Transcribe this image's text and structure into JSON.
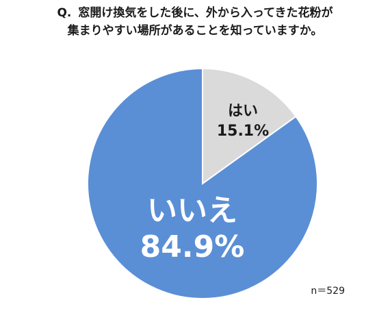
{
  "question": {
    "prefix": "Q.",
    "line1": "窓開け換気をした後に、外から入ってきた花粉が",
    "line2": "集まりやすい場所があることを知っていますか。"
  },
  "sample_size": "n＝529",
  "colors": {
    "yes": "#dadada",
    "no": "#5a8fd6",
    "stroke": "#ffffff",
    "yes_text": "#1a1a1a",
    "no_text": "#ffffff"
  },
  "chart_data": {
    "type": "pie",
    "title": "",
    "slices": [
      {
        "label": "はい",
        "value": 15.1,
        "value_label": "15.1%"
      },
      {
        "label": "いいえ",
        "value": 84.9,
        "value_label": "84.9%"
      }
    ],
    "start": "12 o'clock",
    "direction": "clockwise",
    "legend": "none"
  }
}
